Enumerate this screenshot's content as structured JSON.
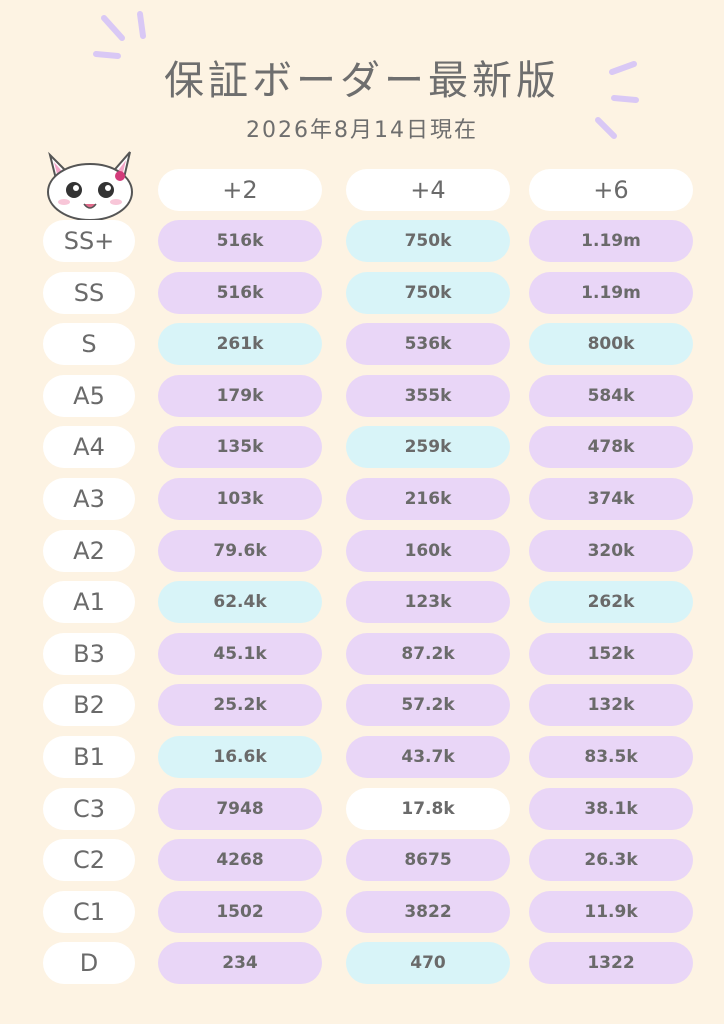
{
  "header": {
    "title": "保証ボーダー最新版",
    "subtitle": "2026年8月14日現在"
  },
  "table": {
    "columns": [
      "+2",
      "+4",
      "+6"
    ],
    "palette": {
      "purple": "#e9d6f7",
      "cyan": "#d8f4f8",
      "white": "#ffffff"
    },
    "rows": [
      {
        "rank": "SS+",
        "cells": [
          "516k",
          "750k",
          "1.19m"
        ],
        "colors": [
          "purple",
          "cyan",
          "purple"
        ]
      },
      {
        "rank": "SS",
        "cells": [
          "516k",
          "750k",
          "1.19m"
        ],
        "colors": [
          "purple",
          "cyan",
          "purple"
        ]
      },
      {
        "rank": "S",
        "cells": [
          "261k",
          "536k",
          "800k"
        ],
        "colors": [
          "cyan",
          "purple",
          "cyan"
        ]
      },
      {
        "rank": "A5",
        "cells": [
          "179k",
          "355k",
          "584k"
        ],
        "colors": [
          "purple",
          "purple",
          "purple"
        ]
      },
      {
        "rank": "A4",
        "cells": [
          "135k",
          "259k",
          "478k"
        ],
        "colors": [
          "purple",
          "cyan",
          "purple"
        ]
      },
      {
        "rank": "A3",
        "cells": [
          "103k",
          "216k",
          "374k"
        ],
        "colors": [
          "purple",
          "purple",
          "purple"
        ]
      },
      {
        "rank": "A2",
        "cells": [
          "79.6k",
          "160k",
          "320k"
        ],
        "colors": [
          "purple",
          "purple",
          "purple"
        ]
      },
      {
        "rank": "A1",
        "cells": [
          "62.4k",
          "123k",
          "262k"
        ],
        "colors": [
          "cyan",
          "purple",
          "cyan"
        ]
      },
      {
        "rank": "B3",
        "cells": [
          "45.1k",
          "87.2k",
          "152k"
        ],
        "colors": [
          "purple",
          "purple",
          "purple"
        ]
      },
      {
        "rank": "B2",
        "cells": [
          "25.2k",
          "57.2k",
          "132k"
        ],
        "colors": [
          "purple",
          "purple",
          "purple"
        ]
      },
      {
        "rank": "B1",
        "cells": [
          "16.6k",
          "43.7k",
          "83.5k"
        ],
        "colors": [
          "cyan",
          "purple",
          "purple"
        ]
      },
      {
        "rank": "C3",
        "cells": [
          7948,
          "17.8k",
          "38.1k"
        ],
        "colors": [
          "purple",
          "white",
          "purple"
        ]
      },
      {
        "rank": "C2",
        "cells": [
          4268,
          8675,
          "26.3k"
        ],
        "colors": [
          "purple",
          "purple",
          "purple"
        ]
      },
      {
        "rank": "C1",
        "cells": [
          1502,
          3822,
          "11.9k"
        ],
        "colors": [
          "purple",
          "purple",
          "purple"
        ]
      },
      {
        "rank": "D",
        "cells": [
          234,
          470,
          1322
        ],
        "colors": [
          "purple",
          "cyan",
          "purple"
        ]
      }
    ]
  }
}
